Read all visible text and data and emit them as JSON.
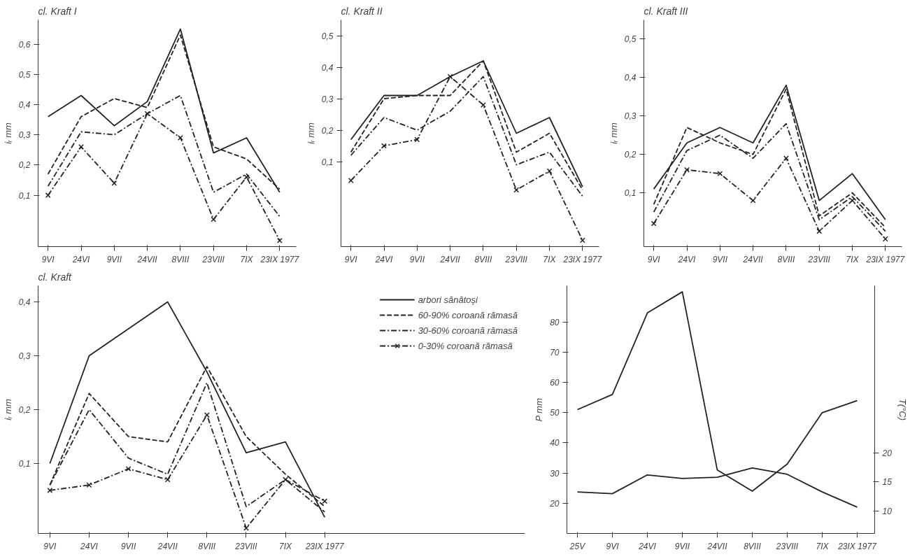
{
  "chart_data": [
    {
      "type": "line",
      "title": "cl. Kraft I",
      "ylabel": "iᵣ mm",
      "categories": [
        "9VI",
        "24VI",
        "9VII",
        "24VII",
        "8VIII",
        "23VIII",
        "7IX",
        "23IX 1977"
      ],
      "ylim": [
        -0.07,
        0.68
      ],
      "yticks": [
        {
          "value": 0.1,
          "label": "0,1"
        },
        {
          "value": 0.2,
          "label": "0,2"
        },
        {
          "value": 0.3,
          "label": "0,3"
        },
        {
          "value": 0.4,
          "label": "0,4"
        },
        {
          "value": 0.5,
          "label": "0,5"
        },
        {
          "value": 0.6,
          "label": "0,6"
        }
      ],
      "grid": false,
      "legend": false,
      "series": [
        {
          "color": "#222222",
          "line_style": "solid",
          "marker": "none",
          "values": [
            0.36,
            0.43,
            0.33,
            0.41,
            0.65,
            0.24,
            0.29,
            0.11
          ]
        },
        {
          "color": "#222222",
          "line_style": "dashed",
          "marker": "none",
          "values": [
            0.17,
            0.36,
            0.42,
            0.39,
            0.63,
            0.26,
            0.22,
            0.12
          ]
        },
        {
          "color": "#222222",
          "line_style": "dashdot",
          "marker": "none",
          "values": [
            0.13,
            0.31,
            0.3,
            0.37,
            0.43,
            0.11,
            0.17,
            0.03
          ]
        },
        {
          "color": "#222222",
          "line_style": "dashdot",
          "marker": "cross",
          "values": [
            0.1,
            0.26,
            0.14,
            0.37,
            0.29,
            0.02,
            0.16,
            -0.05
          ]
        }
      ]
    },
    {
      "type": "line",
      "title": "cl. Kraft II",
      "ylabel": "iᵣ mm",
      "categories": [
        "9VI",
        "24VI",
        "9VII",
        "24VII",
        "8VIII",
        "23VIII",
        "7IX",
        "23IX 1977"
      ],
      "ylim": [
        -0.17,
        0.55
      ],
      "yticks": [
        {
          "value": 0.1,
          "label": "0,1"
        },
        {
          "value": 0.2,
          "label": "0,2"
        },
        {
          "value": 0.3,
          "label": "0,3"
        },
        {
          "value": 0.4,
          "label": "0,4"
        },
        {
          "value": 0.5,
          "label": "0,5"
        }
      ],
      "grid": false,
      "legend": false,
      "series": [
        {
          "color": "#222222",
          "line_style": "solid",
          "marker": "none",
          "values": [
            0.17,
            0.31,
            0.31,
            0.37,
            0.42,
            0.19,
            0.24,
            0.02
          ]
        },
        {
          "color": "#222222",
          "line_style": "dashed",
          "marker": "none",
          "values": [
            0.13,
            0.3,
            0.31,
            0.31,
            0.42,
            0.13,
            0.19,
            0.01
          ]
        },
        {
          "color": "#222222",
          "line_style": "dashdot",
          "marker": "none",
          "values": [
            0.12,
            0.24,
            0.2,
            0.26,
            0.37,
            0.09,
            0.13,
            -0.01
          ]
        },
        {
          "color": "#222222",
          "line_style": "dashdot",
          "marker": "cross",
          "values": [
            0.04,
            0.15,
            0.17,
            0.37,
            0.28,
            0.01,
            0.07,
            -0.15
          ]
        }
      ]
    },
    {
      "type": "line",
      "title": "cl. Kraft III",
      "ylabel": "iᵣ mm",
      "categories": [
        "9VI",
        "24VI",
        "9VII",
        "24VII",
        "8VIII",
        "23VIII",
        "7IX",
        "23IX 1977"
      ],
      "ylim": [
        -0.04,
        0.55
      ],
      "yticks": [
        {
          "value": 0.1,
          "label": "0,1"
        },
        {
          "value": 0.2,
          "label": "0,2"
        },
        {
          "value": 0.3,
          "label": "0,3"
        },
        {
          "value": 0.4,
          "label": "0,4"
        },
        {
          "value": 0.5,
          "label": "0,5"
        }
      ],
      "grid": false,
      "legend": false,
      "series": [
        {
          "color": "#222222",
          "line_style": "solid",
          "marker": "none",
          "values": [
            0.11,
            0.23,
            0.27,
            0.23,
            0.38,
            0.08,
            0.15,
            0.03
          ]
        },
        {
          "color": "#222222",
          "line_style": "dashed",
          "marker": "none",
          "values": [
            0.07,
            0.27,
            0.23,
            0.2,
            0.37,
            0.04,
            0.1,
            0.01
          ]
        },
        {
          "color": "#222222",
          "line_style": "dashdot",
          "marker": "none",
          "values": [
            0.05,
            0.21,
            0.25,
            0.19,
            0.28,
            0.03,
            0.09,
            0.0
          ]
        },
        {
          "color": "#222222",
          "line_style": "dashdot",
          "marker": "cross",
          "values": [
            0.02,
            0.16,
            0.15,
            0.08,
            0.19,
            0.0,
            0.08,
            -0.02
          ]
        }
      ]
    },
    {
      "type": "line",
      "title": "cl. Kraft",
      "ylabel": "iᵣ mm",
      "categories": [
        "9VI",
        "24VI",
        "9VII",
        "24VII",
        "8VIII",
        "23VIII",
        "7IX",
        "23IX 1977"
      ],
      "ylim": [
        -0.03,
        0.43
      ],
      "yticks": [
        {
          "value": 0.1,
          "label": "0,1"
        },
        {
          "value": 0.2,
          "label": "0,2"
        },
        {
          "value": 0.3,
          "label": "0,3"
        },
        {
          "value": 0.4,
          "label": "0,4"
        }
      ],
      "grid": false,
      "legend": "right",
      "series": [
        {
          "name": "arbori sănătoşi",
          "color": "#222222",
          "line_style": "solid",
          "marker": "none",
          "values": [
            0.1,
            0.3,
            0.35,
            0.4,
            0.27,
            0.12,
            0.14,
            0.0
          ]
        },
        {
          "name": "60-90% coroană rămasă",
          "color": "#222222",
          "line_style": "dashed",
          "marker": "none",
          "values": [
            0.06,
            0.23,
            0.15,
            0.14,
            0.28,
            0.15,
            0.08,
            0.02
          ]
        },
        {
          "name": "30-60% coroană rămasă",
          "color": "#222222",
          "line_style": "dashdot",
          "marker": "none",
          "values": [
            0.06,
            0.2,
            0.11,
            0.08,
            0.25,
            0.02,
            0.07,
            0.01
          ]
        },
        {
          "name": "0-30% coroană rămasă",
          "color": "#222222",
          "line_style": "dashdot",
          "marker": "cross",
          "values": [
            0.05,
            0.06,
            0.09,
            0.07,
            0.19,
            -0.02,
            0.07,
            0.03
          ]
        }
      ]
    },
    {
      "type": "line",
      "ylabel": "P mm",
      "y2label": "T(°C)",
      "categories": [
        "25V",
        "9VI",
        "24VI",
        "9VII",
        "24VII",
        "8VIII",
        "23VIII",
        "7IX",
        "23IX 1977"
      ],
      "ylim": [
        10,
        92
      ],
      "yticks": [
        20,
        30,
        40,
        50,
        60,
        70,
        80
      ],
      "y2lim": [
        6.2,
        48.5
      ],
      "y2ticks": [
        10,
        15,
        20
      ],
      "grid": false,
      "legend": false,
      "series": [
        {
          "color": "#222222",
          "line_style": "solid",
          "marker": "none",
          "values": [
            51,
            56,
            83,
            90,
            31,
            24,
            33,
            50,
            54
          ]
        },
        {
          "color": "#222222",
          "line_style": "solid",
          "marker": "none",
          "axis": "y2",
          "values": [
            13.3,
            13.0,
            16.2,
            15.6,
            15.8,
            17.4,
            16.3,
            13.3,
            10.7
          ]
        }
      ]
    }
  ]
}
